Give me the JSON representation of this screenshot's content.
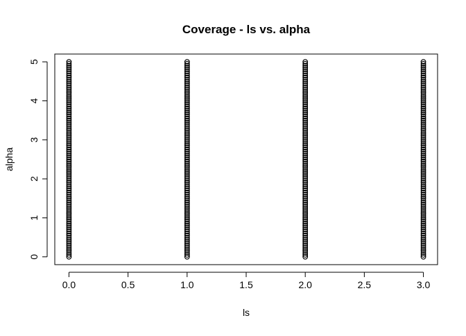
{
  "chart_data": {
    "type": "scatter",
    "title": "Coverage - ls vs. alpha",
    "xlabel": "ls",
    "ylabel": "alpha",
    "xlim": [
      -0.12,
      3.12
    ],
    "ylim": [
      -0.2,
      5.2
    ],
    "x_ticks": [
      0.0,
      0.5,
      1.0,
      1.5,
      2.0,
      2.5,
      3.0
    ],
    "x_tick_labels": [
      "0.0",
      "0.5",
      "1.0",
      "1.5",
      "2.0",
      "2.5",
      "3.0"
    ],
    "y_ticks": [
      0,
      1,
      2,
      3,
      4,
      5
    ],
    "y_tick_labels": [
      "0",
      "1",
      "2",
      "3",
      "4",
      "5"
    ],
    "grid": false,
    "legend": "none",
    "marker_color": "#000000",
    "series": [
      {
        "x_values": [
          0,
          1,
          2,
          3
        ],
        "y_range": [
          0,
          5
        ],
        "y_step": 0.05
      }
    ]
  }
}
